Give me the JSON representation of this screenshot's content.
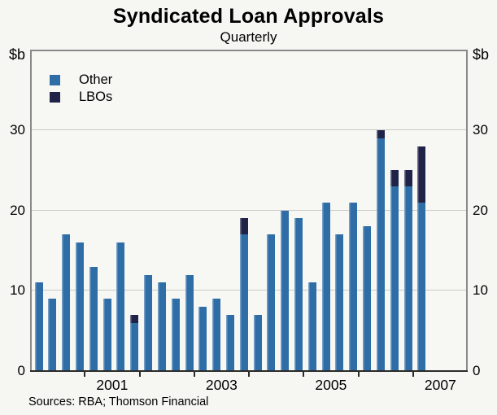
{
  "header": {
    "title": "Syndicated Loan Approvals",
    "subtitle": "Quarterly"
  },
  "chart_data": {
    "type": "bar",
    "stacked": true,
    "title": "Syndicated Loan Approvals",
    "subtitle": "Quarterly",
    "unit_label": "$b",
    "ylim": [
      0,
      40
    ],
    "yticks": [
      0,
      10,
      20,
      30
    ],
    "grid": "horizontal",
    "legend_position": "top-left",
    "x_year_labels": [
      "2001",
      "2003",
      "2005",
      "2007"
    ],
    "quarters": [
      "2000 Q1",
      "2000 Q2",
      "2000 Q3",
      "2000 Q4",
      "2001 Q1",
      "2001 Q2",
      "2001 Q3",
      "2001 Q4",
      "2002 Q1",
      "2002 Q2",
      "2002 Q3",
      "2002 Q4",
      "2003 Q1",
      "2003 Q2",
      "2003 Q3",
      "2003 Q4",
      "2004 Q1",
      "2004 Q2",
      "2004 Q3",
      "2004 Q4",
      "2005 Q1",
      "2005 Q2",
      "2005 Q3",
      "2005 Q4",
      "2006 Q1",
      "2006 Q2",
      "2006 Q3",
      "2006 Q4",
      "2007 Q1"
    ],
    "totals": [
      11,
      9,
      17,
      16,
      13,
      9,
      16,
      7,
      12,
      11,
      9,
      12,
      8,
      9,
      7,
      19,
      7,
      17,
      20,
      19,
      11,
      21,
      17,
      21,
      18,
      30,
      25,
      25,
      28
    ],
    "series": [
      {
        "name": "Other",
        "color": "#2e6da6",
        "values": [
          11,
          9,
          17,
          16,
          13,
          9,
          16,
          6,
          12,
          11,
          9,
          12,
          8,
          9,
          7,
          17,
          7,
          17,
          20,
          19,
          11,
          21,
          17,
          21,
          18,
          29,
          23,
          23,
          21
        ]
      },
      {
        "name": "LBOs",
        "color": "#1f2347",
        "values": [
          0,
          0,
          0,
          0,
          0,
          0,
          0,
          1,
          0,
          0,
          0,
          0,
          0,
          0,
          0,
          2,
          0,
          0,
          0,
          0,
          0,
          0,
          0,
          0,
          0,
          1,
          2,
          2,
          7
        ]
      }
    ]
  },
  "footer": {
    "source": "Sources: RBA; Thomson Financial"
  }
}
